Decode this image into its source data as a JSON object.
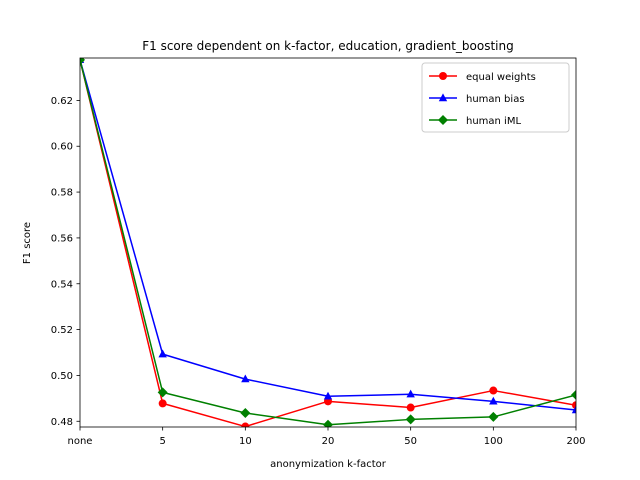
{
  "chart_data": {
    "type": "line",
    "title": "F1 score dependent on k-factor, education, gradient_boosting",
    "xlabel": "anonymization k-factor",
    "ylabel": "F1 score",
    "categories": [
      "none",
      "5",
      "10",
      "20",
      "50",
      "100",
      "200"
    ],
    "ylim": [
      0.4775,
      0.6385
    ],
    "yticks": [
      "0.48",
      "0.50",
      "0.52",
      "0.54",
      "0.56",
      "0.58",
      "0.60",
      "0.62"
    ],
    "grid": false,
    "legend_position": "top-right",
    "series": [
      {
        "name": "equal weights",
        "color": "#ff0000",
        "marker": "circle",
        "values": [
          0.6377,
          0.4878,
          0.4777,
          0.4887,
          0.486,
          0.4934,
          0.487
        ]
      },
      {
        "name": "human bias",
        "color": "#0000ff",
        "marker": "triangle",
        "values": [
          0.6377,
          0.5093,
          0.4984,
          0.4909,
          0.4918,
          0.4887,
          0.4849
        ]
      },
      {
        "name": "human iML",
        "color": "#008000",
        "marker": "diamond",
        "values": [
          0.6377,
          0.4926,
          0.4836,
          0.4785,
          0.4808,
          0.4819,
          0.4915
        ]
      }
    ]
  }
}
